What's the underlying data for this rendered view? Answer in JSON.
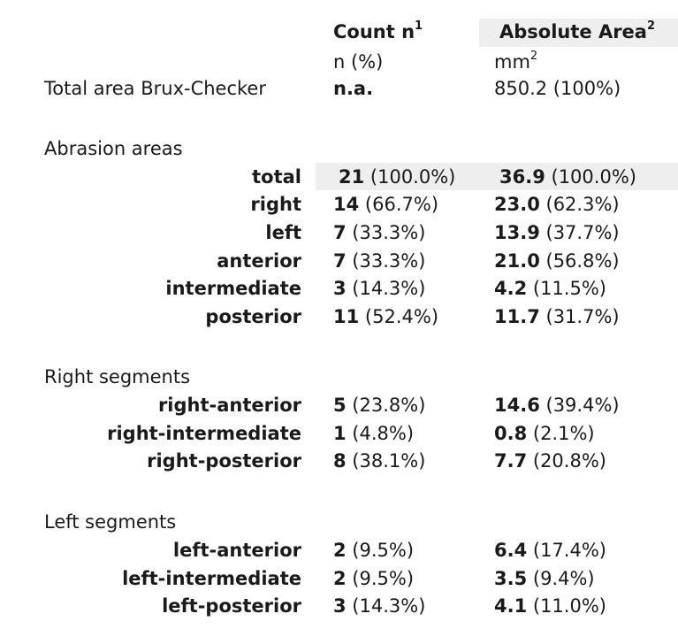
{
  "header": {
    "count_title": "Count n",
    "count_sup": "1",
    "area_title": "Absolute Area",
    "area_sup": "2",
    "count_unit": "n (%)",
    "area_unit_base": "mm",
    "area_unit_sup": "2"
  },
  "total_row": {
    "label": "Total area Brux-Checker",
    "count": "n.a.",
    "area": "850.2 (100%)"
  },
  "sections": {
    "abrasion": "Abrasion areas",
    "right": "Right segments",
    "left": "Left segments"
  },
  "rows": {
    "total": {
      "label": "total",
      "count_v": "21",
      "count_p": " (100.0%)",
      "area_v": "36.9",
      "area_p": " (100.0%)"
    },
    "right": {
      "label": "right",
      "count_v": "14",
      "count_p": " (66.7%)",
      "area_v": "23.0",
      "area_p": " (62.3%)"
    },
    "left": {
      "label": "left",
      "count_v": "7",
      "count_p": " (33.3%)",
      "area_v": "13.9",
      "area_p": " (37.7%)"
    },
    "anterior": {
      "label": "anterior",
      "count_v": "7",
      "count_p": " (33.3%)",
      "area_v": "21.0",
      "area_p": " (56.8%)"
    },
    "intermediate": {
      "label": "intermediate",
      "count_v": "3",
      "count_p": " (14.3%)",
      "area_v": "4.2",
      "area_p": " (11.5%)"
    },
    "posterior": {
      "label": "posterior",
      "count_v": "11",
      "count_p": " (52.4%)",
      "area_v": "11.7",
      "area_p": " (31.7%)"
    },
    "r_ant": {
      "label": "right-anterior",
      "count_v": "5",
      "count_p": " (23.8%)",
      "area_v": "14.6",
      "area_p": " (39.4%)"
    },
    "r_int": {
      "label": "right-intermediate",
      "count_v": "1",
      "count_p": " (4.8%)",
      "area_v": "0.8",
      "area_p": " (2.1%)"
    },
    "r_post": {
      "label": "right-posterior",
      "count_v": "8",
      "count_p": " (38.1%)",
      "area_v": "7.7",
      "area_p": " (20.8%)"
    },
    "l_ant": {
      "label": "left-anterior",
      "count_v": "2",
      "count_p": " (9.5%)",
      "area_v": "6.4",
      "area_p": " (17.4%)"
    },
    "l_int": {
      "label": "left-intermediate",
      "count_v": "2",
      "count_p": " (9.5%)",
      "area_v": "3.5",
      "area_p": " (9.4%)"
    },
    "l_post": {
      "label": "left-posterior",
      "count_v": "3",
      "count_p": " (14.3%)",
      "area_v": "4.1",
      "area_p": " (11.0%)"
    }
  }
}
